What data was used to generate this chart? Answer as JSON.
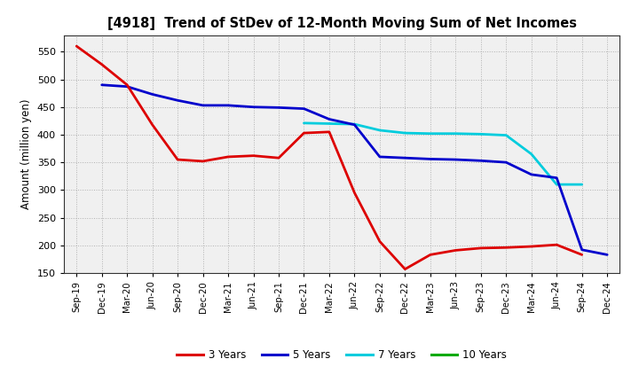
{
  "title": "[4918]  Trend of StDev of 12-Month Moving Sum of Net Incomes",
  "ylabel": "Amount (million yen)",
  "background_color": "#ffffff",
  "plot_bg_color": "#f0f0f0",
  "grid_color": "#aaaaaa",
  "ylim": [
    150,
    580
  ],
  "yticks": [
    150,
    200,
    250,
    300,
    350,
    400,
    450,
    500,
    550
  ],
  "x_labels": [
    "Sep-19",
    "Dec-19",
    "Mar-20",
    "Jun-20",
    "Sep-20",
    "Dec-20",
    "Mar-21",
    "Jun-21",
    "Sep-21",
    "Dec-21",
    "Mar-22",
    "Jun-22",
    "Sep-22",
    "Dec-22",
    "Mar-23",
    "Jun-23",
    "Sep-23",
    "Dec-23",
    "Mar-24",
    "Jun-24",
    "Sep-24",
    "Dec-24"
  ],
  "series": {
    "3 Years": {
      "color": "#dd0000",
      "linewidth": 2.0,
      "data_x": [
        0,
        1,
        2,
        3,
        4,
        5,
        6,
        7,
        8,
        9,
        10,
        11,
        12,
        13,
        14,
        15,
        16,
        17,
        18,
        19,
        20
      ],
      "data_y": [
        560,
        527,
        490,
        418,
        355,
        352,
        360,
        362,
        358,
        403,
        405,
        295,
        207,
        157,
        183,
        191,
        195,
        196,
        198,
        201,
        183
      ]
    },
    "5 Years": {
      "color": "#0000cc",
      "linewidth": 2.0,
      "data_x": [
        1,
        2,
        3,
        4,
        5,
        6,
        7,
        8,
        9,
        10,
        11,
        12,
        13,
        14,
        15,
        16,
        17,
        18,
        19,
        20,
        21
      ],
      "data_y": [
        490,
        487,
        473,
        462,
        453,
        453,
        450,
        449,
        447,
        428,
        418,
        360,
        358,
        356,
        355,
        353,
        350,
        328,
        322,
        192,
        183
      ]
    },
    "7 Years": {
      "color": "#00ccdd",
      "linewidth": 2.0,
      "data_x": [
        9,
        10,
        11,
        12,
        13,
        14,
        15,
        16,
        17,
        18,
        19,
        20
      ],
      "data_y": [
        421,
        420,
        419,
        408,
        403,
        402,
        402,
        401,
        399,
        365,
        310,
        310
      ]
    },
    "10 Years": {
      "color": "#00aa00",
      "linewidth": 2.0,
      "data_x": [],
      "data_y": []
    }
  },
  "legend_entries": [
    "3 Years",
    "5 Years",
    "7 Years",
    "10 Years"
  ],
  "legend_colors": [
    "#dd0000",
    "#0000cc",
    "#00ccdd",
    "#00aa00"
  ]
}
